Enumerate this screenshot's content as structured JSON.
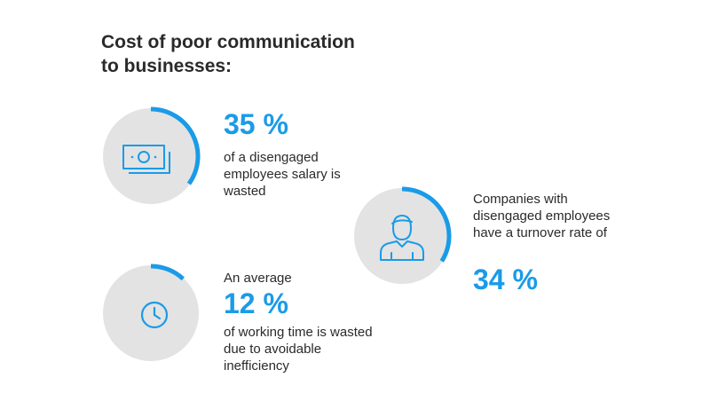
{
  "title": "Cost of poor communication\nto businesses:",
  "accent": "#1a9be8",
  "ring_bg": "#e3e3e3",
  "stats": [
    {
      "icon": "money-icon",
      "fill": 0.35,
      "pre": "",
      "value": "35 %",
      "desc": "of a disengaged employees salary is wasted"
    },
    {
      "icon": "clock-icon",
      "fill": 0.12,
      "pre": "An average",
      "value": "12 %",
      "desc": "of working time is wasted due to avoidable inefficiency"
    },
    {
      "icon": "person-icon",
      "fill": 0.34,
      "pre": "Companies with disengaged employees have a turnover rate of",
      "value": "34 %",
      "desc": ""
    }
  ]
}
